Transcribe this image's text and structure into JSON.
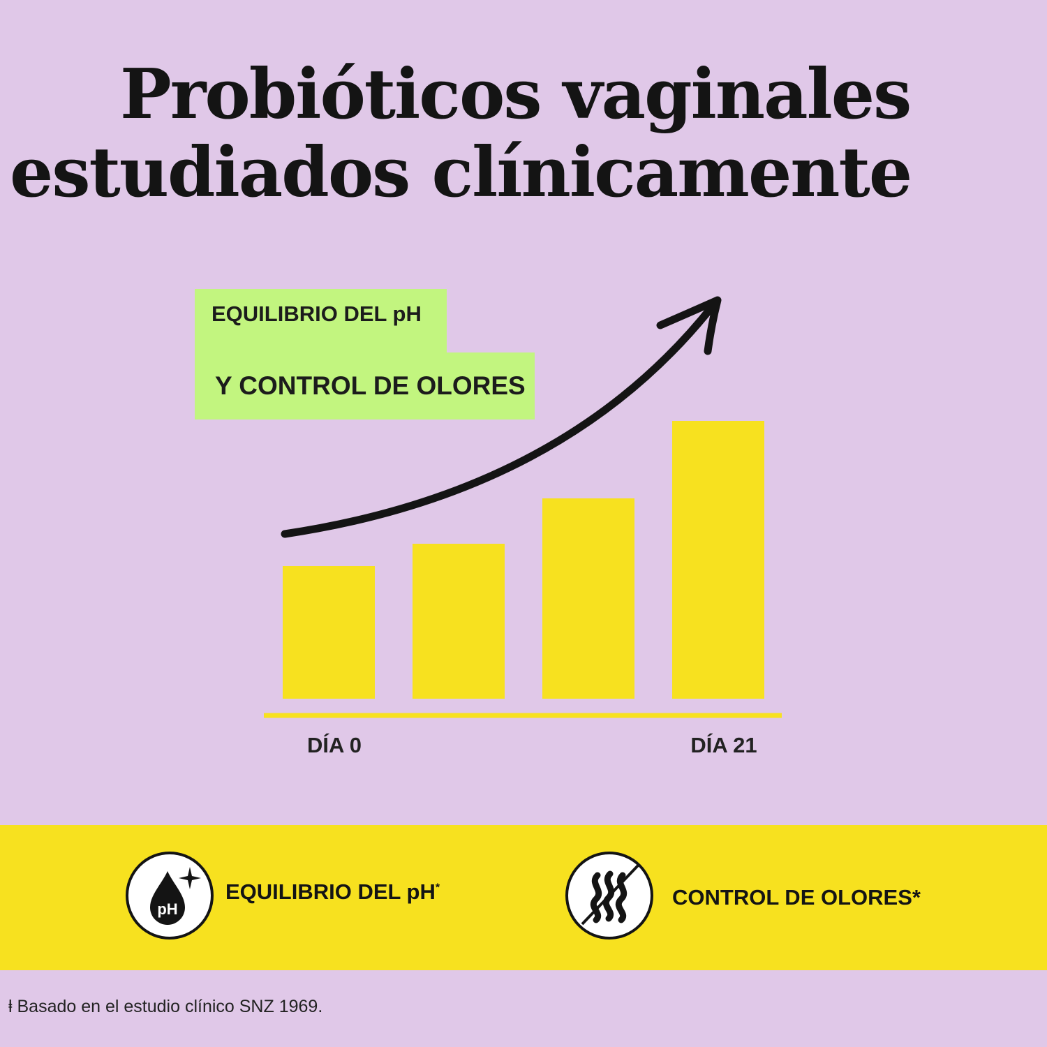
{
  "title": {
    "line1": "Probióticos vaginales",
    "line2": "estudiados clínicamente"
  },
  "highlight": {
    "line1": "EQUILIBRIO DEL pH",
    "line2": "Y CONTROL DE OLORES"
  },
  "chart_data": {
    "type": "bar",
    "categories": [
      "DÍA 0",
      "",
      "",
      "DÍA 21"
    ],
    "values": [
      190,
      222,
      287,
      398
    ],
    "xlabel": "",
    "ylabel": "",
    "ylim": [
      0,
      420
    ],
    "grid": false,
    "trend_arrow": true
  },
  "benefits": [
    {
      "icon": "ph-drop-icon",
      "label": "EQUILIBRIO DEL pH",
      "marker": "*",
      "icon_text": "pH"
    },
    {
      "icon": "no-odor-icon",
      "label": "CONTROL DE OLORES*"
    }
  ],
  "footnote": "ⱡ Basado en el estudio clínico SNZ 1969.",
  "colors": {
    "background": "#e0c8e8",
    "bar": "#f7e11f",
    "highlight": "#c2f57f",
    "band": "#f7e11f",
    "ink": "#141414"
  }
}
